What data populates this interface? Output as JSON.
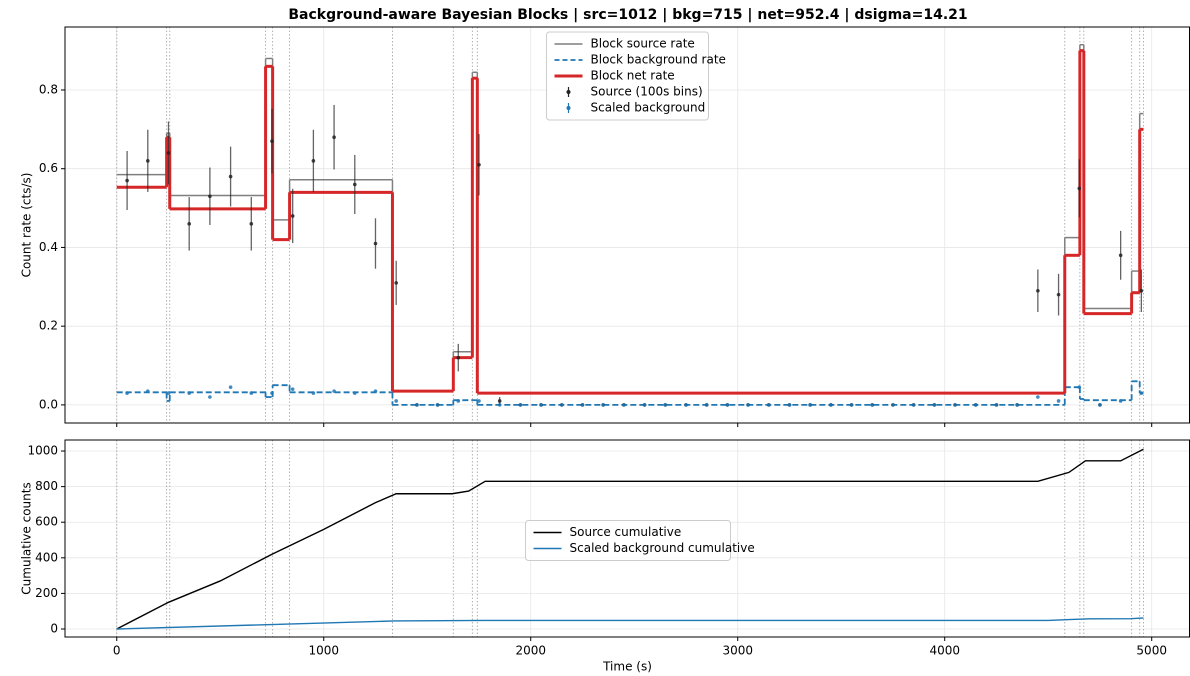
{
  "chart_data": [
    {
      "type": "step",
      "title": "Background-aware Bayesian Blocks | src=1012 | bkg=715 | net=952.4 | dsigma=14.21",
      "ylabel": "Count rate (cts/s)",
      "xlim": [
        -250,
        5185
      ],
      "ylim": [
        -0.046,
        0.96
      ],
      "xticks": [
        0,
        1000,
        2000,
        3000,
        4000,
        5000
      ],
      "yticks": [
        {
          "value": 0,
          "label": "0.0"
        },
        0.2,
        0.4,
        0.6,
        0.8
      ],
      "grid": true,
      "legend": "upper center",
      "edges": [
        0,
        241,
        256,
        719,
        753,
        835,
        1332,
        1626,
        1718,
        1742,
        4580,
        4653,
        4672,
        4903,
        4942,
        4960
      ],
      "series": [
        {
          "name": "Block source rate",
          "color": "#7f7f7f",
          "linestyle": "solid",
          "linewidth": 1.5,
          "values": [
            0.585,
            0.69,
            0.532,
            0.88,
            0.47,
            0.572,
            0.035,
            0.135,
            0.845,
            0.03,
            0.425,
            0.915,
            0.245,
            0.34,
            0.74
          ]
        },
        {
          "name": "Block background rate",
          "color": "#1f77b4",
          "linestyle": "dashed",
          "linewidth": 1.8,
          "values": [
            0.032,
            0.01,
            0.032,
            0.02,
            0.05,
            0.032,
            0.0,
            0.012,
            0.012,
            0.0,
            0.045,
            0.015,
            0.012,
            0.06,
            0.03
          ]
        },
        {
          "name": "Block net rate",
          "color": "#d62728",
          "linestyle": "solid",
          "linewidth": 3,
          "values": [
            0.553,
            0.68,
            0.498,
            0.86,
            0.42,
            0.54,
            0.035,
            0.12,
            0.83,
            0.03,
            0.38,
            0.9,
            0.232,
            0.285,
            0.7
          ]
        }
      ],
      "points": [
        {
          "name": "Source (100s bins)",
          "color": "#222222",
          "x": [
            50,
            150,
            250,
            350,
            450,
            550,
            650,
            750,
            850,
            950,
            1050,
            1150,
            1250,
            1350,
            1450,
            1550,
            1650,
            1750,
            1850,
            1950,
            2050,
            2150,
            2250,
            2350,
            2450,
            2550,
            2650,
            2750,
            2850,
            2950,
            3050,
            3150,
            3250,
            3350,
            3450,
            3550,
            3650,
            3750,
            3850,
            3950,
            4050,
            4150,
            4250,
            4350,
            4450,
            4550,
            4650,
            4750,
            4850,
            4950
          ],
          "values": [
            0.57,
            0.62,
            0.64,
            0.46,
            0.53,
            0.58,
            0.46,
            0.67,
            0.48,
            0.62,
            0.68,
            0.56,
            0.41,
            0.31,
            0,
            0,
            0.12,
            0.61,
            0.01,
            0,
            0,
            0,
            0,
            0,
            0,
            0,
            0,
            0,
            0,
            0,
            0,
            0,
            0,
            0,
            0,
            0,
            0,
            0,
            0,
            0,
            0,
            0,
            0,
            0,
            0.29,
            0.28,
            0.55,
            0,
            0.38,
            0.29
          ],
          "errors": [
            0.075,
            0.079,
            0.08,
            0.068,
            0.073,
            0.076,
            0.068,
            0.082,
            0.069,
            0.079,
            0.082,
            0.075,
            0.064,
            0.056,
            0,
            0,
            0.035,
            0.078,
            0.01,
            0,
            0,
            0,
            0,
            0,
            0,
            0,
            0,
            0,
            0,
            0,
            0,
            0,
            0,
            0,
            0,
            0,
            0,
            0,
            0,
            0,
            0,
            0,
            0,
            0,
            0.054,
            0.053,
            0.074,
            0,
            0.062,
            0.054
          ]
        },
        {
          "name": "Scaled background",
          "color": "#1f77b4",
          "x": [
            50,
            150,
            250,
            350,
            450,
            550,
            650,
            750,
            850,
            950,
            1050,
            1150,
            1250,
            1350,
            1450,
            1550,
            1650,
            1750,
            1850,
            1950,
            2050,
            2150,
            2250,
            2350,
            2450,
            2550,
            2650,
            2750,
            2850,
            2950,
            3050,
            3150,
            3250,
            3350,
            3450,
            3550,
            3650,
            3750,
            3850,
            3950,
            4050,
            4150,
            4250,
            4350,
            4450,
            4550,
            4650,
            4750,
            4850,
            4950
          ],
          "values": [
            0.03,
            0.035,
            0.03,
            0.03,
            0.02,
            0.045,
            0.03,
            0.03,
            0.04,
            0.03,
            0.035,
            0.03,
            0.035,
            0.01,
            0,
            0,
            0.01,
            0.01,
            0,
            0,
            0,
            0,
            0,
            0,
            0,
            0,
            0,
            0,
            0,
            0,
            0,
            0,
            0,
            0,
            0,
            0,
            0,
            0,
            0,
            0,
            0,
            0,
            0,
            0,
            0.02,
            0.01,
            0.045,
            0,
            0.01,
            0.03
          ]
        }
      ]
    },
    {
      "type": "line",
      "xlabel": "Time (s)",
      "ylabel": "Cumulative counts",
      "xlim": [
        -250,
        5185
      ],
      "ylim": [
        -45,
        1062
      ],
      "xticks": [
        0,
        1000,
        2000,
        3000,
        4000,
        5000
      ],
      "yticks": [
        0,
        200,
        400,
        600,
        800,
        1000
      ],
      "grid": true,
      "legend": "center",
      "edges": [
        0,
        241,
        256,
        719,
        753,
        835,
        1332,
        1626,
        1718,
        1742,
        4580,
        4653,
        4672,
        4903,
        4942,
        4960
      ],
      "series": [
        {
          "name": "Source cumulative",
          "color": "#000000",
          "x": [
            0,
            250,
            500,
            750,
            1000,
            1250,
            1350,
            1620,
            1700,
            1780,
            4450,
            4600,
            4680,
            4850,
            4960
          ],
          "values": [
            0,
            150,
            270,
            420,
            560,
            710,
            760,
            760,
            775,
            830,
            830,
            880,
            945,
            945,
            1010
          ]
        },
        {
          "name": "Scaled background cumulative",
          "color": "#1f77b4",
          "x": [
            0,
            1340,
            1780,
            4500,
            4600,
            4700,
            4900,
            4960
          ],
          "values": [
            0,
            45,
            48,
            48,
            53,
            57,
            58,
            62
          ]
        }
      ]
    }
  ]
}
